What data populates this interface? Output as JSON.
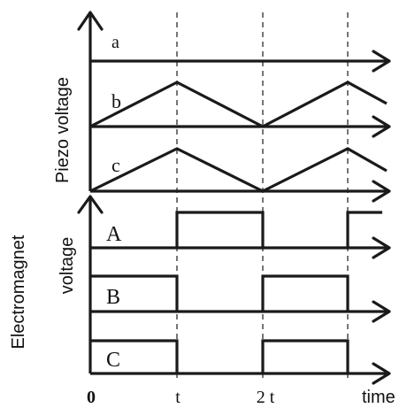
{
  "y_axis_titles": {
    "piezo": "Piezo voltage",
    "electromagnet_line1": "Electromagnet",
    "electromagnet_line2": "voltage"
  },
  "x_axis": {
    "title": "time",
    "ticks": [
      "0",
      "t",
      "2 t"
    ]
  },
  "piezo_rows": [
    {
      "label": "a",
      "waveform": "constant zero"
    },
    {
      "label": "b",
      "waveform": "triangle 0 → peak at t → 0 at 2t → peak at 3t"
    },
    {
      "label": "c",
      "waveform": "triangle 0 → peak at t → 0 at 2t → peak at 3t"
    }
  ],
  "magnet_rows": [
    {
      "label": "A",
      "waveform": "low 0–t, high t–2t, low 2t–3t, high after 3t"
    },
    {
      "label": "B",
      "waveform": "high 0–t, low t–2t, high 2t–3t"
    },
    {
      "label": "C",
      "waveform": "high 0–t, low t–2t, high 2t–3t"
    }
  ]
}
